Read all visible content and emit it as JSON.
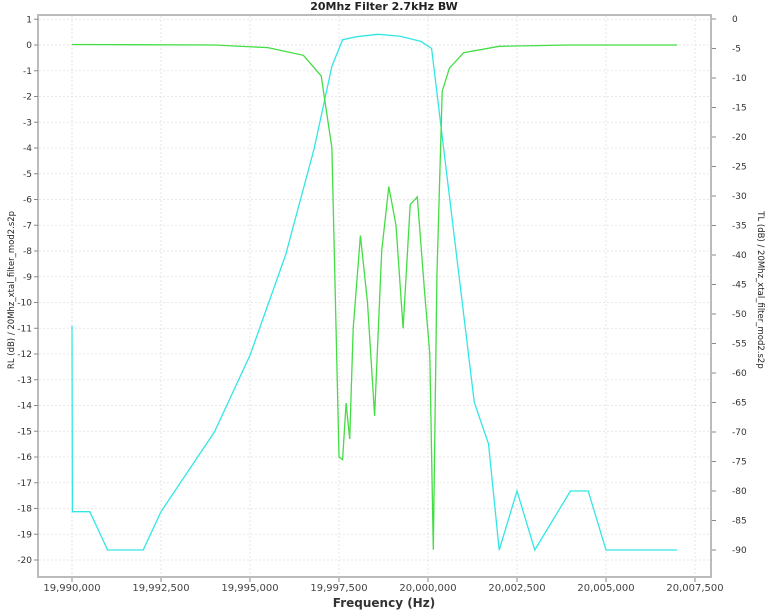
{
  "chart": {
    "title": "20Mhz Filter 2.7kHz BW",
    "xlabel": "Frequency (Hz)",
    "ylabel_left": "RL (dB) / 20Mhz_xtal_filter_mod2.s2p",
    "ylabel_right": "TL (dB) / 20Mhz_xtal_filter_mod2.s2p",
    "colors": {
      "rl": "#44dd44",
      "tl": "#33e6e6",
      "grid": "#e0e0e0",
      "axis": "#bbbbbb"
    }
  },
  "chart_data": {
    "type": "line",
    "title": "20Mhz Filter 2.7kHz BW",
    "xlabel": "Frequency (Hz)",
    "ylabel": "RL (dB) / 20Mhz_xtal_filter_mod2.s2p",
    "ylabel_right": "TL (dB) / 20Mhz_xtal_filter_mod2.s2p",
    "x_ticks": [
      "19,990,000",
      "19,992,500",
      "19,995,000",
      "19,997,500",
      "20,000,000",
      "20,002,500",
      "20,005,000",
      "20,007,500"
    ],
    "y_left_ticks": [
      "1",
      "0",
      "-1",
      "-2",
      "-3",
      "-4",
      "-5",
      "-6",
      "-7",
      "-8",
      "-9",
      "-10",
      "-11",
      "-12",
      "-13",
      "-14",
      "-15",
      "-16",
      "-17",
      "-18",
      "-19",
      "-20"
    ],
    "y_right_ticks": [
      "0",
      "-5",
      "-10",
      "-15",
      "-20",
      "-25",
      "-30",
      "-35",
      "-40",
      "-45",
      "-50",
      "-55",
      "-60",
      "-65",
      "-70",
      "-75",
      "-80",
      "-85",
      "-90"
    ],
    "xlim": [
      19989000,
      20008000
    ],
    "ylim_left": [
      -20.7,
      1.2
    ],
    "ylim_right": [
      -95,
      0
    ],
    "grid": true,
    "series": [
      {
        "name": "RL (dB)",
        "axis": "left",
        "color": "#44dd44",
        "x": [
          19990000,
          19994000,
          19995500,
          19996500,
          19997000,
          19997300,
          19997500,
          19997600,
          19997700,
          19997800,
          19997900,
          19998100,
          19998300,
          19998500,
          19998700,
          19998900,
          19999100,
          19999300,
          19999500,
          19999700,
          19999900,
          20000050,
          20000150,
          20000250,
          20000400,
          20000600,
          20001000,
          20002000,
          20004000,
          20007000
        ],
        "values": [
          0.02,
          0.0,
          -0.1,
          -0.4,
          -1.2,
          -4.0,
          -16.0,
          -16.1,
          -13.9,
          -15.3,
          -11.0,
          -7.4,
          -10.0,
          -14.4,
          -8.0,
          -5.5,
          -7.0,
          -11.0,
          -6.2,
          -5.9,
          -9.5,
          -12.0,
          -19.6,
          -9.0,
          -1.8,
          -0.9,
          -0.3,
          -0.05,
          0.0,
          0.0
        ]
      },
      {
        "name": "TL (dB)",
        "axis": "right",
        "color": "#33e6e6",
        "x": [
          19990000,
          19990010,
          19990500,
          19991000,
          19992000,
          19992500,
          19993000,
          19994000,
          19995000,
          19996000,
          19996800,
          19997300,
          19997600,
          19998000,
          19998600,
          19999200,
          19999800,
          20000100,
          20000300,
          20000800,
          20001300,
          20001700,
          20002000,
          20002500,
          20003000,
          20004000,
          20004500,
          20005000,
          20007000
        ],
        "values": [
          -52.0,
          -83.5,
          -83.5,
          -90.0,
          -90.0,
          -83.5,
          -79.0,
          -70.0,
          -57.0,
          -40.0,
          -22.0,
          -8.0,
          -3.5,
          -3.0,
          -2.6,
          -2.9,
          -3.8,
          -5.0,
          -15.0,
          -40.0,
          -65.0,
          -72.0,
          -90.0,
          -80.0,
          -90.0,
          -80.0,
          -80.0,
          -90.0,
          -90.0
        ]
      }
    ]
  }
}
